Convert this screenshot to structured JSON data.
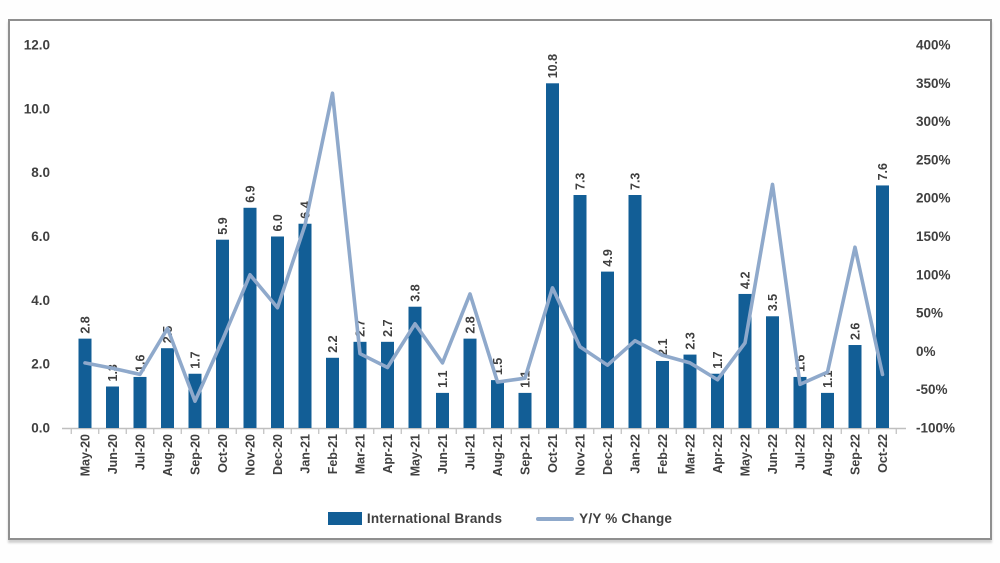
{
  "frame": {
    "background": "#ffffff",
    "border_color": "#8f8f8f"
  },
  "colors": {
    "bar_fill": "#125E96",
    "line_stroke": "#8FA9CB",
    "axis_line": "#BFBFBF",
    "tick_label_text": "#404040",
    "data_label_text": "#3F3F3F"
  },
  "legend": {
    "bar_label": "International Brands",
    "line_label": "Y/Y % Change"
  },
  "chart_data": {
    "type": "bar",
    "subtype": "combo-bar-line-dual-axis",
    "title": "",
    "xlabel": "",
    "ylabel": "",
    "grid": "off",
    "legend_position": "bottom",
    "categories": [
      "May-20",
      "Jun-20",
      "Jul-20",
      "Aug-20",
      "Sep-20",
      "Oct-20",
      "Nov-20",
      "Dec-20",
      "Jan-21",
      "Feb-21",
      "Mar-21",
      "Apr-21",
      "May-21",
      "Jun-21",
      "Jul-21",
      "Aug-21",
      "Sep-21",
      "Oct-21",
      "Nov-21",
      "Dec-21",
      "Jan-22",
      "Feb-22",
      "Mar-22",
      "Apr-22",
      "May-22",
      "Jun-22",
      "Jul-22",
      "Aug-22",
      "Sep-22",
      "Oct-22"
    ],
    "series": [
      {
        "name": "International Brands",
        "type": "bar",
        "axis": "left",
        "color": "#125E96",
        "values": [
          2.8,
          1.3,
          1.6,
          2.5,
          1.7,
          5.9,
          6.9,
          6.0,
          6.4,
          2.2,
          2.7,
          2.7,
          3.8,
          1.1,
          2.8,
          1.5,
          1.1,
          10.8,
          7.3,
          4.9,
          7.3,
          2.1,
          2.3,
          1.7,
          4.2,
          3.5,
          1.6,
          1.1,
          2.6,
          7.6
        ],
        "data_labels": [
          "2.8",
          "1.3",
          "1.6",
          "2.5",
          "1.7",
          "5.9",
          "6.9",
          "6.0",
          "6.4",
          "2.2",
          "2.7",
          "2.7",
          "3.8",
          "1.1",
          "2.8",
          "1.5",
          "1.1",
          "10.8",
          "7.3",
          "4.9",
          "7.3",
          "2.1",
          "2.3",
          "1.7",
          "4.2",
          "3.5",
          "1.6",
          "1.1",
          "2.6",
          "7.6"
        ]
      },
      {
        "name": "Y/Y % Change",
        "type": "line",
        "axis": "right",
        "color": "#8FA9CB",
        "values_pct": [
          -15,
          -22,
          -30,
          30,
          -65,
          15,
          100,
          57,
          165,
          337,
          -3,
          -21,
          36,
          -15,
          75,
          -40,
          -35,
          83,
          6,
          -18,
          14,
          -5,
          -15,
          -37,
          11,
          218,
          -43,
          -27,
          136,
          -30
        ]
      }
    ],
    "left_axis": {
      "min": 0,
      "max": 12,
      "step": 2,
      "tick_labels": [
        "0.0",
        "2.0",
        "4.0",
        "6.0",
        "8.0",
        "10.0",
        "12.0"
      ]
    },
    "right_axis": {
      "min": -100,
      "max": 400,
      "step": 50,
      "tick_labels": [
        "-100%",
        "-50%",
        "0%",
        "50%",
        "100%",
        "150%",
        "200%",
        "250%",
        "300%",
        "350%",
        "400%"
      ]
    }
  }
}
